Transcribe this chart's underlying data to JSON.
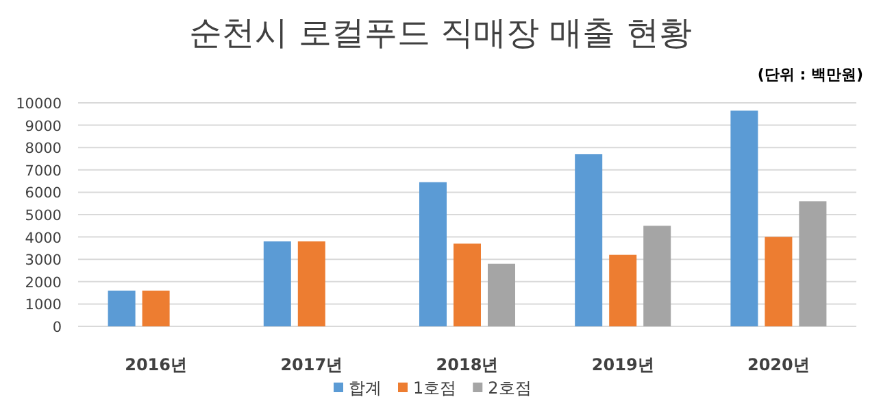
{
  "chart_data": {
    "type": "bar",
    "title": "순천시 로컬푸드 직매장 매출 현황",
    "annotations": [
      "(단위 : 백만원)"
    ],
    "categories": [
      "2016년",
      "2017년",
      "2018년",
      "2019년",
      "2020년"
    ],
    "series": [
      {
        "name": "합계",
        "color": "#5b9bd5",
        "values": [
          1600,
          3800,
          6450,
          7700,
          9650
        ]
      },
      {
        "name": "1호점",
        "color": "#ed7d31",
        "values": [
          1600,
          3800,
          3700,
          3200,
          4000
        ]
      },
      {
        "name": "2호점",
        "color": "#a5a5a5",
        "values": [
          null,
          null,
          2800,
          4500,
          5600
        ]
      }
    ],
    "ylim": [
      0,
      10000
    ],
    "yticks": [
      0,
      1000,
      2000,
      3000,
      4000,
      5000,
      6000,
      7000,
      8000,
      9000,
      10000
    ],
    "grid": "y",
    "legend": "bottom"
  }
}
